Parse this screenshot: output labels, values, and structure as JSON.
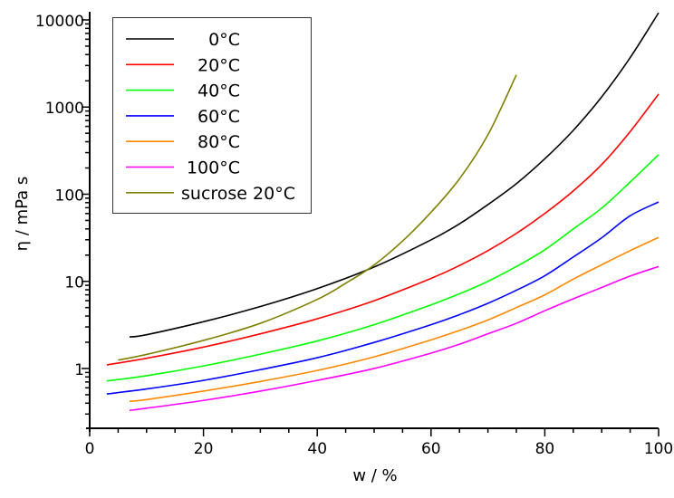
{
  "chart_data": {
    "type": "line",
    "title": "",
    "xlabel": "w / %",
    "ylabel": "η / mPa s",
    "xlim": [
      0,
      100
    ],
    "ylim": [
      0.206,
      12400
    ],
    "yscale": "log",
    "grid": false,
    "legend_position": "top-left",
    "x_ticks": [
      "0",
      "20",
      "40",
      "60",
      "80",
      "100"
    ],
    "y_ticks": [
      "1",
      "10",
      "100",
      "1000",
      "10000"
    ],
    "series": [
      {
        "name": "0°C",
        "color": "#000000",
        "x": [
          7,
          10,
          20,
          30,
          40,
          50,
          60,
          65,
          70,
          75,
          80,
          85,
          90,
          95,
          100
        ],
        "y": [
          2.3,
          2.44,
          3.44,
          5.14,
          8.25,
          14.6,
          29.9,
          45.7,
          76,
          132,
          255,
          540,
          1310,
          3690,
          12070
        ]
      },
      {
        "name": "20°C",
        "color": "#ff0000",
        "x": [
          3,
          10,
          20,
          30,
          40,
          50,
          60,
          65,
          70,
          75,
          80,
          85,
          90,
          95,
          100
        ],
        "y": [
          1.1,
          1.31,
          1.76,
          2.5,
          3.72,
          6.0,
          10.8,
          15.2,
          22.5,
          35.5,
          60.1,
          109,
          219,
          523,
          1410
        ]
      },
      {
        "name": "40°C",
        "color": "#00ff00",
        "x": [
          3,
          10,
          20,
          30,
          40,
          50,
          60,
          65,
          70,
          75,
          80,
          85,
          90,
          95,
          100
        ],
        "y": [
          0.72,
          0.826,
          1.07,
          1.46,
          2.07,
          3.18,
          5.37,
          7.19,
          10.0,
          14.8,
          23.0,
          39.9,
          69.3,
          138,
          284
        ]
      },
      {
        "name": "60°C",
        "color": "#0000ff",
        "x": [
          3,
          10,
          20,
          30,
          40,
          50,
          60,
          65,
          70,
          75,
          80,
          85,
          90,
          95,
          100
        ],
        "y": [
          0.51,
          0.582,
          0.73,
          0.97,
          1.33,
          1.99,
          3.18,
          4.15,
          5.6,
          7.9,
          11.6,
          19.0,
          31.6,
          56.5,
          81.3
        ]
      },
      {
        "name": "80°C",
        "color": "#ff8800",
        "x": [
          7,
          10,
          20,
          30,
          40,
          50,
          60,
          65,
          70,
          75,
          80,
          85,
          90,
          95,
          100
        ],
        "y": [
          0.42,
          0.44,
          0.55,
          0.71,
          0.95,
          1.36,
          2.13,
          2.73,
          3.6,
          5.0,
          7.0,
          10.6,
          15.5,
          22.5,
          31.9
        ]
      },
      {
        "name": "100°C",
        "color": "#ff00ff",
        "x": [
          7,
          10,
          20,
          30,
          40,
          50,
          60,
          65,
          70,
          75,
          80,
          85,
          90,
          95,
          100
        ],
        "y": [
          0.33,
          0.35,
          0.43,
          0.55,
          0.73,
          1.0,
          1.5,
          1.9,
          2.5,
          3.3,
          4.6,
          6.3,
          8.5,
          11.5,
          14.8
        ]
      },
      {
        "name": "sucrose 20°C",
        "color": "#808000",
        "x": [
          5,
          10,
          20,
          30,
          40,
          45,
          50,
          55,
          60,
          65,
          70,
          75
        ],
        "y": [
          1.25,
          1.45,
          2.1,
          3.3,
          6.2,
          9.5,
          15.4,
          29,
          62,
          150,
          480,
          2340
        ]
      }
    ]
  }
}
